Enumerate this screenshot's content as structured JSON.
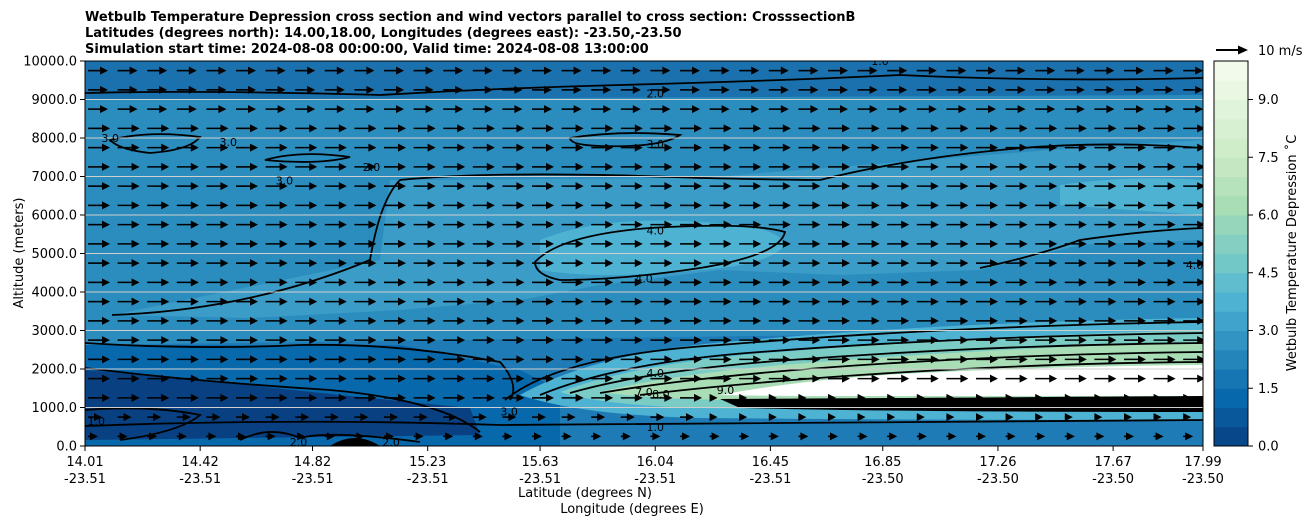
{
  "chart_data": {
    "type": "heatmap",
    "title_lines": [
      "Wetbulb Temperature Depression cross section and wind vectors parallel to cross section: CrosssectionB",
      "Latitudes (degrees north): 14.00,18.00, Longitudes (degrees east): -23.50,-23.50",
      "Simulation start time: 2024-08-08 00:00:00, Valid time: 2024-08-08 13:00:00"
    ],
    "ylabel": "Altitude (meters)",
    "xlabel_lat": "Latitude (degrees N)",
    "xlabel_lon": "Longitude (degrees E)",
    "ylim": [
      0,
      10000
    ],
    "y_ticks": [
      "0.0",
      "1000.0",
      "2000.0",
      "3000.0",
      "4000.0",
      "5000.0",
      "6000.0",
      "7000.0",
      "8000.0",
      "9000.0",
      "10000.0"
    ],
    "x_ticks": [
      {
        "lat": "14.01",
        "lon": "-23.51"
      },
      {
        "lat": "14.42",
        "lon": "-23.51"
      },
      {
        "lat": "14.82",
        "lon": "-23.51"
      },
      {
        "lat": "15.23",
        "lon": "-23.51"
      },
      {
        "lat": "15.63",
        "lon": "-23.51"
      },
      {
        "lat": "16.04",
        "lon": "-23.51"
      },
      {
        "lat": "16.45",
        "lon": "-23.51"
      },
      {
        "lat": "16.85",
        "lon": "-23.50"
      },
      {
        "lat": "17.26",
        "lon": "-23.50"
      },
      {
        "lat": "17.67",
        "lon": "-23.50"
      },
      {
        "lat": "17.99",
        "lon": "-23.50"
      }
    ],
    "grid": "horizontal",
    "colorbar": {
      "label": "Wetbulb Temperature Depression ˚C",
      "range": [
        0,
        10
      ],
      "ticks": [
        "0.0",
        "1.5",
        "3.0",
        "4.5",
        "6.0",
        "7.5",
        "9.0"
      ],
      "colors": [
        "#084081",
        "#0868ac",
        "#2b8cbe",
        "#4eb3d3",
        "#7bccc4",
        "#a8ddb5",
        "#ccebc5",
        "#e0f3db",
        "#f7fcf0"
      ]
    },
    "quiver_key": "10 m/s",
    "contour_labels": [
      {
        "text": "1.0",
        "lat": 16.04,
        "alt": 500
      },
      {
        "text": "2.0",
        "lat": 16.04,
        "alt": 9150
      },
      {
        "text": "3.0",
        "lat": 16.04,
        "alt": 7850
      },
      {
        "text": "4.0",
        "lat": 16.04,
        "alt": 5600
      },
      {
        "text": "4.0",
        "lat": 16.0,
        "alt": 4350
      },
      {
        "text": "4.0",
        "lat": 16.04,
        "alt": 1900
      },
      {
        "text": "9.0",
        "lat": 16.29,
        "alt": 1450
      },
      {
        "text": "7.0",
        "lat": 16.0,
        "alt": 1400
      },
      {
        "text": "8.0",
        "lat": 16.06,
        "alt": 1350
      },
      {
        "text": "3.0",
        "lat": 15.52,
        "alt": 900
      },
      {
        "text": "2.0",
        "lat": 14.77,
        "alt": 100
      },
      {
        "text": "2.0",
        "lat": 15.1,
        "alt": 100
      },
      {
        "text": "1.0",
        "lat": 14.05,
        "alt": 650
      },
      {
        "text": "3.0",
        "lat": 14.1,
        "alt": 8000
      },
      {
        "text": "3.0",
        "lat": 14.52,
        "alt": 7900
      },
      {
        "text": "3.0",
        "lat": 14.72,
        "alt": 6900
      },
      {
        "text": "2.0",
        "lat": 15.03,
        "alt": 7250
      },
      {
        "text": "1.0",
        "lat": 16.84,
        "alt": 10000
      },
      {
        "text": "4.0",
        "lat": 17.96,
        "alt": 4700
      }
    ]
  }
}
